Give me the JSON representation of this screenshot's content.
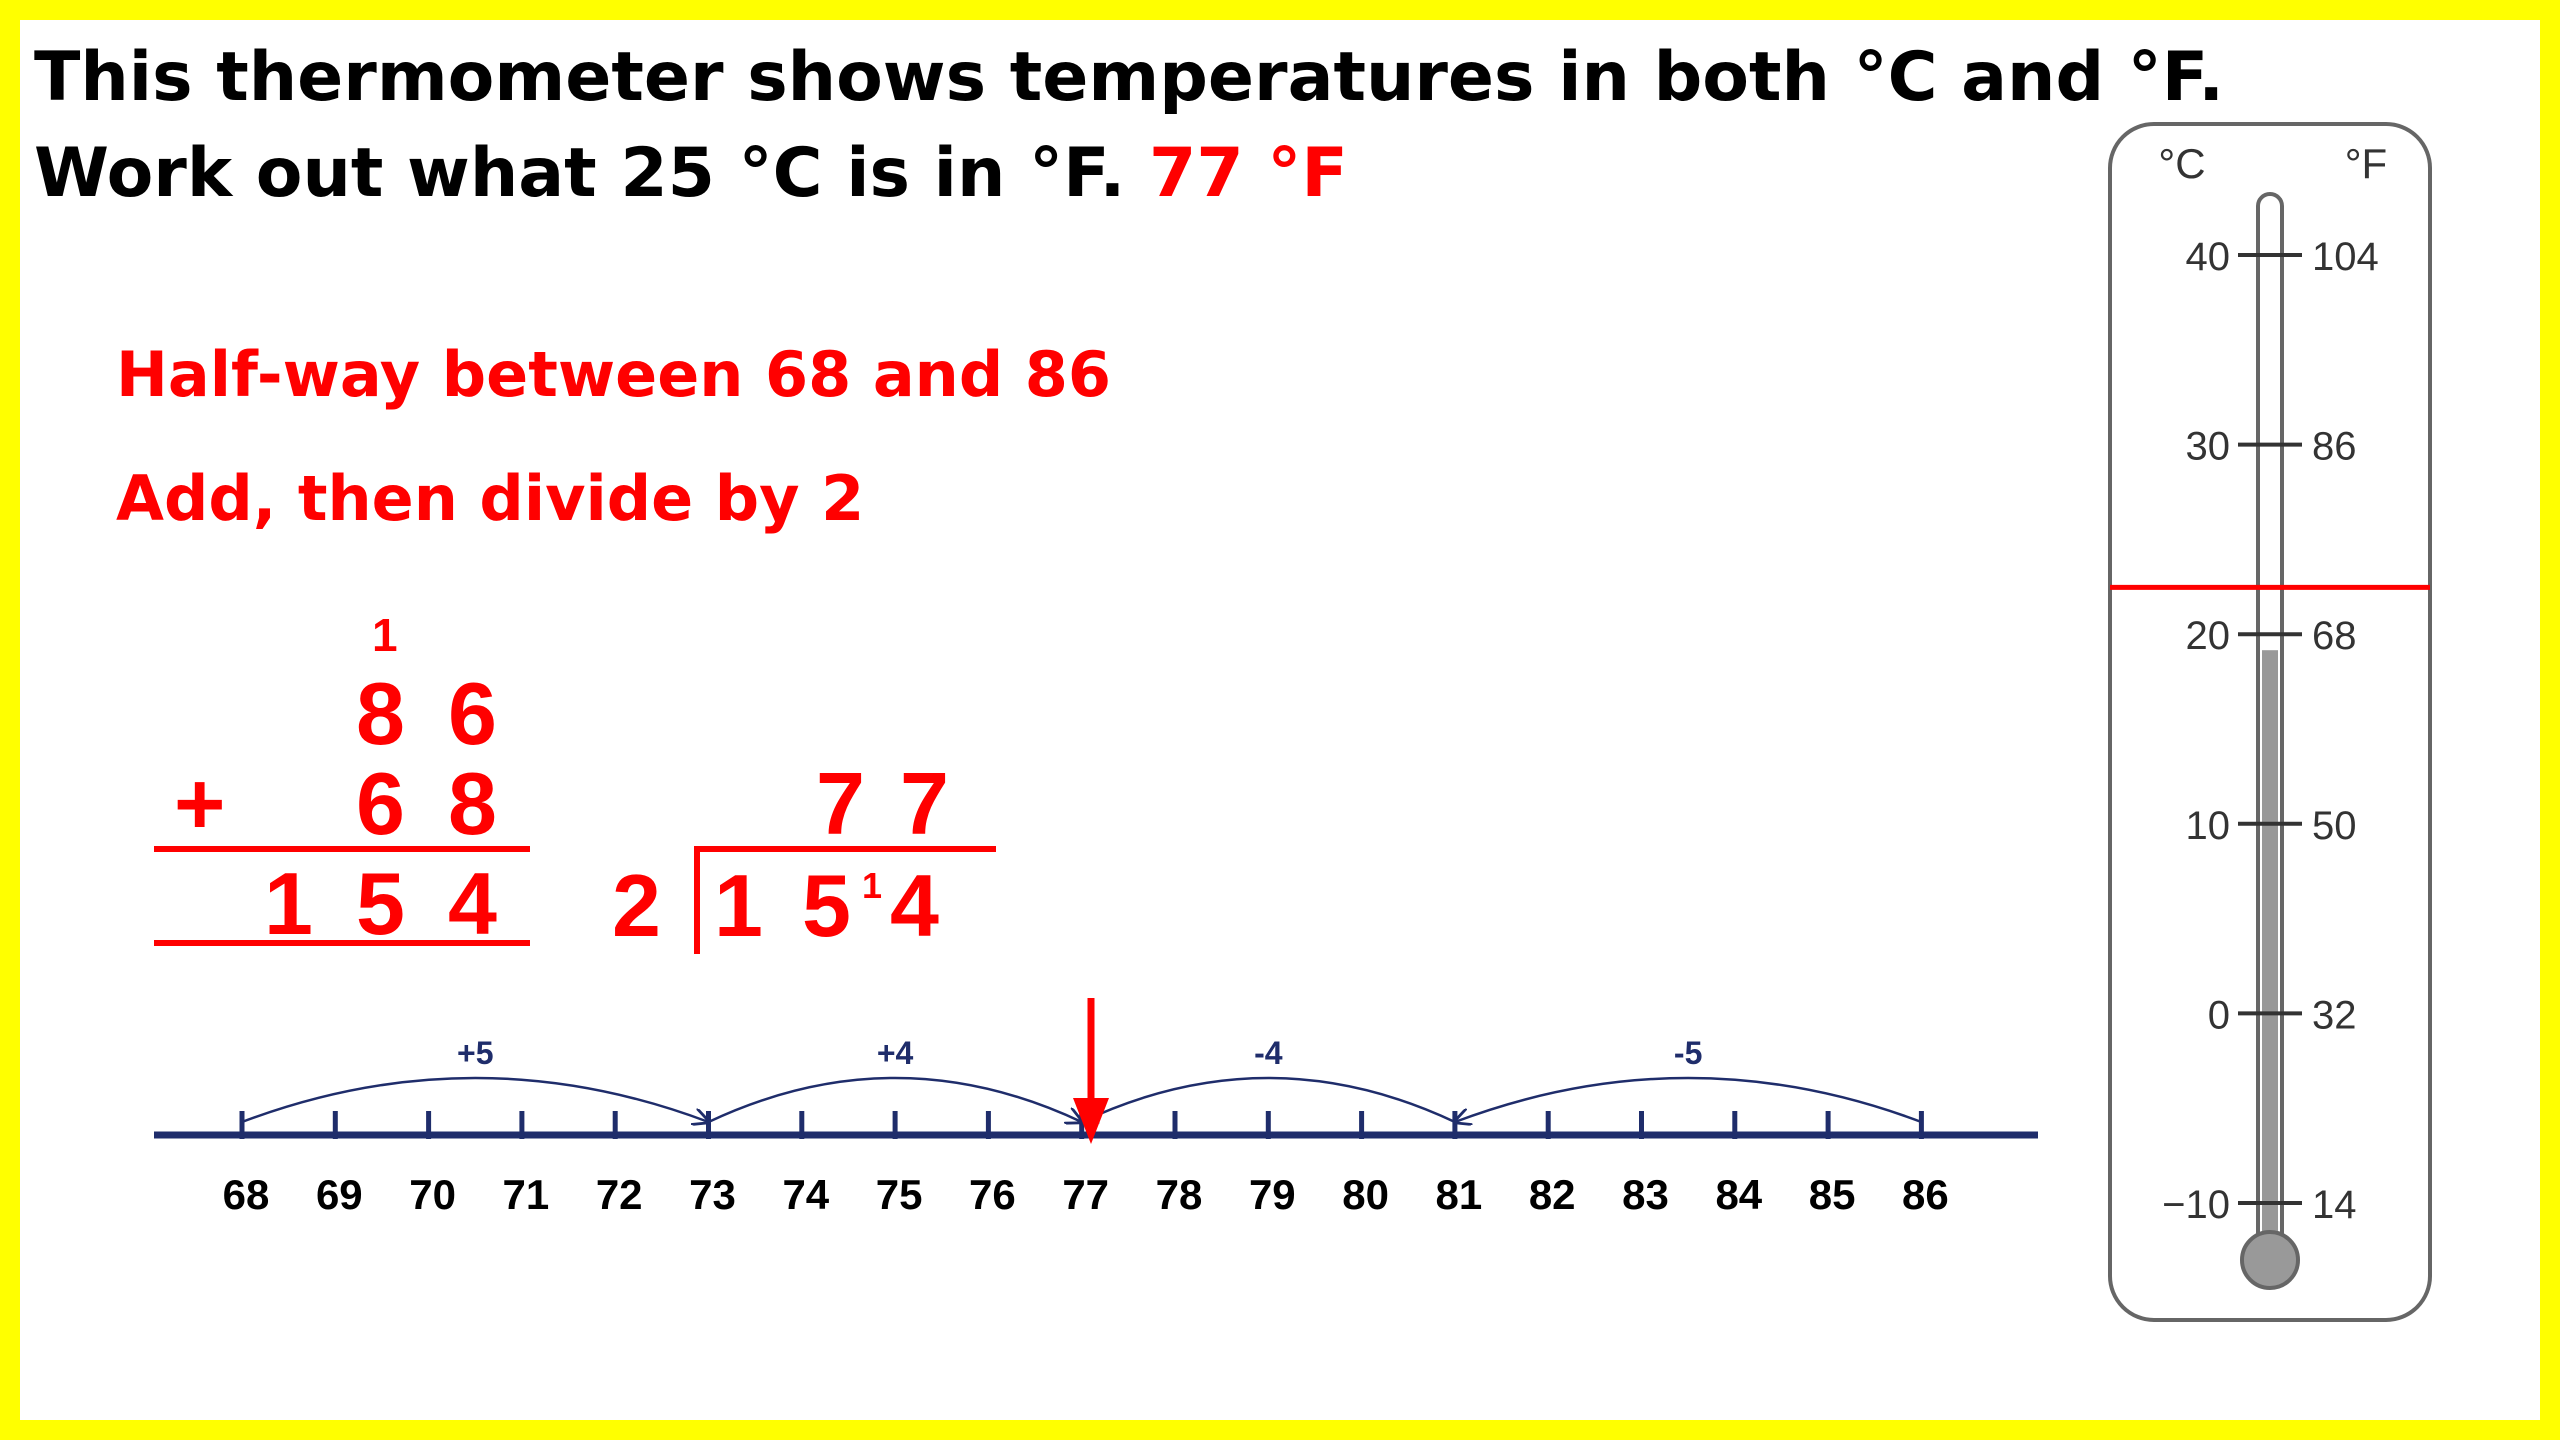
{
  "question": {
    "line1": "This thermometer shows temperatures in both °C and °F.",
    "line2": "Work out what 25 °C is in °F.",
    "answer": "77 °F"
  },
  "steps": {
    "step1": "Half-way between 68 and 86",
    "step2": "Add, then divide by 2"
  },
  "addition": {
    "carry": "1",
    "row1": [
      "8",
      "6"
    ],
    "operator": "+",
    "row2": [
      "6",
      "8"
    ],
    "result": [
      "1",
      "5",
      "4"
    ]
  },
  "division": {
    "divisor": "2",
    "quotient": [
      "7",
      "7"
    ],
    "dividend": [
      "1",
      "5",
      "4"
    ],
    "remainder_carry": "1"
  },
  "number_line": {
    "ticks": [
      "68",
      "69",
      "70",
      "71",
      "72",
      "73",
      "74",
      "75",
      "76",
      "77",
      "78",
      "79",
      "80",
      "81",
      "82",
      "83",
      "84",
      "85",
      "86"
    ],
    "jumps": [
      {
        "label": "+5",
        "from": "68",
        "to": "73"
      },
      {
        "label": "+4",
        "from": "73",
        "to": "77"
      },
      {
        "label": "-4",
        "from": "81",
        "to": "77"
      },
      {
        "label": "-5",
        "from": "86",
        "to": "81"
      }
    ],
    "marker_value": "77"
  },
  "thermometer": {
    "c_unit": "°C",
    "f_unit": "°F",
    "scale": [
      {
        "c": "40",
        "f": "104"
      },
      {
        "c": "30",
        "f": "86"
      },
      {
        "c": "20",
        "f": "68"
      },
      {
        "c": "10",
        "f": "50"
      },
      {
        "c": "0",
        "f": "32"
      },
      {
        "c": "−10",
        "f": "14"
      }
    ],
    "mercury_level_c": 20,
    "marker_level_c": 25
  },
  "colors": {
    "border": "#ffff00",
    "working": "#ff0000",
    "number_line": "#1f2d6b",
    "mercury": "#999999"
  }
}
